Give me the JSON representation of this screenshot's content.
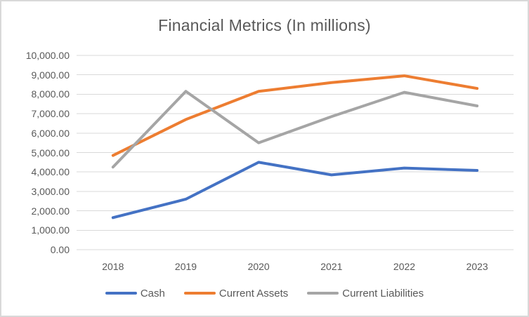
{
  "window": {
    "background_color": "#ffffff",
    "border_color": "#d9d9d9",
    "text_color": "#595959"
  },
  "chart_data": {
    "type": "line",
    "title": "Financial Metrics (In millions)",
    "categories": [
      "2018",
      "2019",
      "2020",
      "2021",
      "2022",
      "2023"
    ],
    "series": [
      {
        "name": "Cash",
        "color": "#4472c4",
        "values": [
          1650,
          2600,
          4500,
          3850,
          4200,
          4080
        ]
      },
      {
        "name": "Current Assets",
        "color": "#ed7d31",
        "values": [
          4850,
          6700,
          8150,
          8600,
          8950,
          8300
        ]
      },
      {
        "name": "Current Liabilities",
        "color": "#a5a5a5",
        "values": [
          4250,
          8150,
          5500,
          6850,
          8100,
          7400
        ]
      }
    ],
    "ylim": [
      0,
      10000
    ],
    "y_tick_step": 1000,
    "y_tick_labels": [
      "0.00",
      "1,000.00",
      "2,000.00",
      "3,000.00",
      "4,000.00",
      "5,000.00",
      "6,000.00",
      "7,000.00",
      "8,000.00",
      "9,000.00",
      "10,000.00"
    ],
    "grid": "horizontal",
    "grid_color": "#d9d9d9",
    "legend_position": "bottom"
  }
}
